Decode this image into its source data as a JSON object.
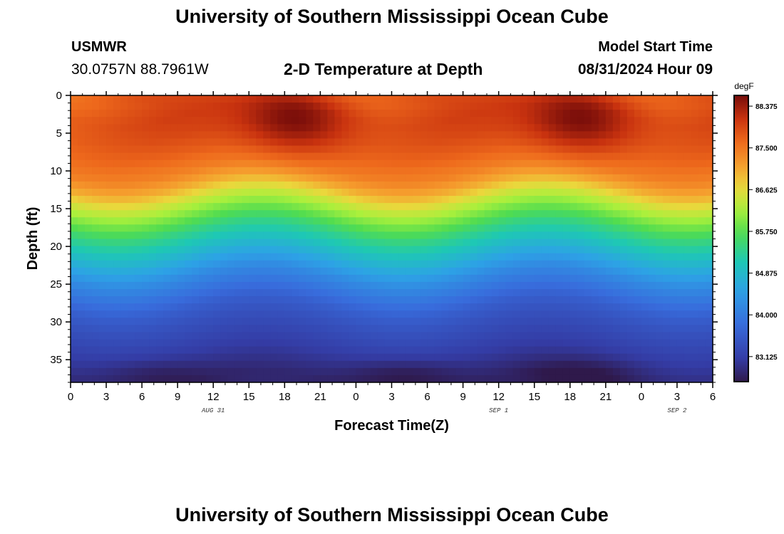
{
  "page": {
    "title": "University of Southern Mississippi Ocean Cube",
    "bottom_title": "University of Southern Mississippi Ocean Cube",
    "station": "USMWR",
    "coords": "30.0757N  88.7961W",
    "plot_title": "2-D Temperature at Depth",
    "model_start_label": "Model Start Time",
    "model_start_value": "08/31/2024 Hour 09"
  },
  "chart_data": {
    "type": "heatmap",
    "title": "2-D Temperature at Depth",
    "xlabel": "Forecast Time(Z)",
    "ylabel": "Depth (ft)",
    "x_range": [
      0,
      54
    ],
    "x_tick_values": [
      0,
      3,
      6,
      9,
      12,
      15,
      18,
      21,
      24,
      27,
      30,
      33,
      36,
      39,
      42,
      45,
      48,
      51,
      54
    ],
    "x_tick_labels": [
      "0",
      "3",
      "6",
      "9",
      "12",
      "15",
      "18",
      "21",
      "0",
      "3",
      "6",
      "9",
      "12",
      "15",
      "18",
      "21",
      "0",
      "3",
      "6"
    ],
    "date_labels": [
      {
        "label": "AUG 31",
        "x": 12
      },
      {
        "label": "SEP 1",
        "x": 36
      },
      {
        "label": "SEP 2",
        "x": 51
      }
    ],
    "y_range": [
      0,
      38
    ],
    "y_reversed": true,
    "y_tick_values": [
      0,
      5,
      10,
      15,
      20,
      25,
      30,
      35
    ],
    "y_tick_labels": [
      "0",
      "5",
      "10",
      "15",
      "20",
      "25",
      "30",
      "35"
    ],
    "colorbar": {
      "unit": "degF",
      "min": 82.6,
      "max": 88.6,
      "tick_values": [
        83.125,
        84.0,
        84.875,
        85.75,
        86.625,
        87.5,
        88.375
      ],
      "tick_labels": [
        "83.125",
        "84.000",
        "84.875",
        "85.750",
        "86.625",
        "87.500",
        "88.375"
      ]
    },
    "profile_depths_ft": [
      0,
      2.5,
      5,
      7.5,
      10,
      12,
      14,
      16,
      18,
      20,
      22,
      24,
      26,
      28,
      30,
      32,
      34,
      36,
      38
    ],
    "profile_base_degF": [
      87.7,
      87.85,
      87.8,
      87.65,
      87.4,
      87.0,
      86.4,
      85.9,
      85.4,
      85.0,
      84.6,
      84.2,
      83.9,
      83.6,
      83.4,
      83.25,
      83.1,
      82.95,
      82.8
    ],
    "warm_surface_events": [
      {
        "x": 19,
        "depth_ft": 3,
        "delta_degF": 0.9
      },
      {
        "x": 43,
        "depth_ft": 3,
        "delta_degF": 0.9
      }
    ],
    "cool_bottom_events": [
      {
        "x": 7,
        "depth_ft": 37,
        "delta_degF": -0.25
      },
      {
        "x": 28,
        "depth_ft": 37,
        "delta_degF": -0.35
      },
      {
        "x": 43,
        "depth_ft": 37,
        "delta_degF": -0.3
      }
    ]
  }
}
